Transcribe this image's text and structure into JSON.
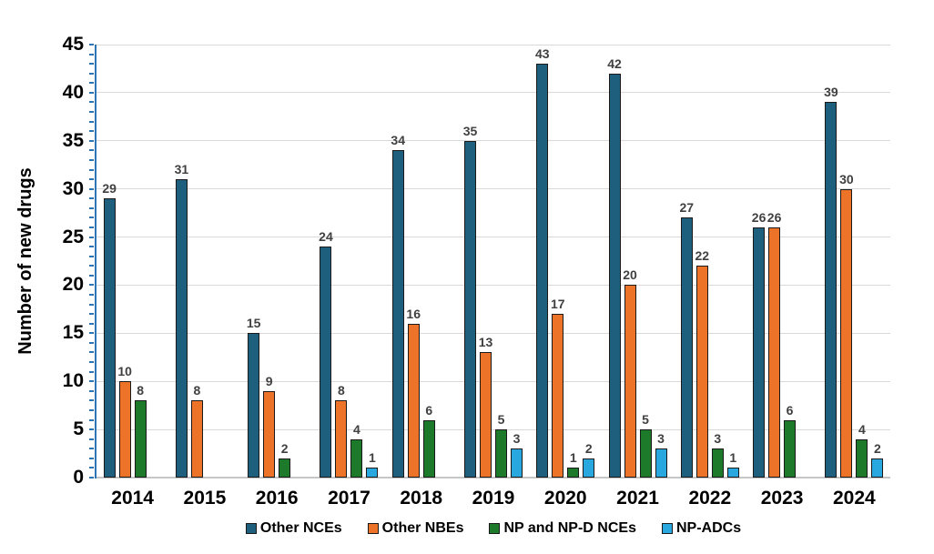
{
  "chart_data": {
    "type": "bar",
    "title": "",
    "xlabel": "",
    "ylabel": "Number of new drugs",
    "ylim": [
      0,
      45
    ],
    "ytick_step": 5,
    "minor_tick_step": 1,
    "grid": "horizontal",
    "legend_position": "bottom",
    "value_labels_shown": true,
    "categories": [
      "2014",
      "2015",
      "2016",
      "2017",
      "2018",
      "2019",
      "2020",
      "2021",
      "2022",
      "2023",
      "2024"
    ],
    "series": [
      {
        "name": "Other NCEs",
        "color": "#1d5f7d",
        "values": [
          29,
          31,
          15,
          24,
          34,
          35,
          43,
          42,
          27,
          26,
          39
        ]
      },
      {
        "name": "Other NBEs",
        "color": "#ed7329",
        "values": [
          10,
          8,
          9,
          8,
          16,
          13,
          17,
          20,
          22,
          26,
          30
        ]
      },
      {
        "name": "NP and NP-D NCEs",
        "color": "#1e7a2b",
        "values": [
          8,
          0,
          2,
          4,
          6,
          5,
          1,
          5,
          3,
          6,
          4
        ]
      },
      {
        "name": "NP-ADCs",
        "color": "#29a8e0",
        "values": [
          0,
          0,
          0,
          1,
          0,
          3,
          2,
          3,
          1,
          0,
          2
        ]
      }
    ],
    "colors": {
      "axis_line": "#2e75b6",
      "gridline": "#d9d9d9",
      "baseline": "#c6c6c6",
      "bar_outline": "#1a1a1a",
      "value_label": "#404040",
      "tick_label": "#000000",
      "background": "#ffffff"
    }
  }
}
